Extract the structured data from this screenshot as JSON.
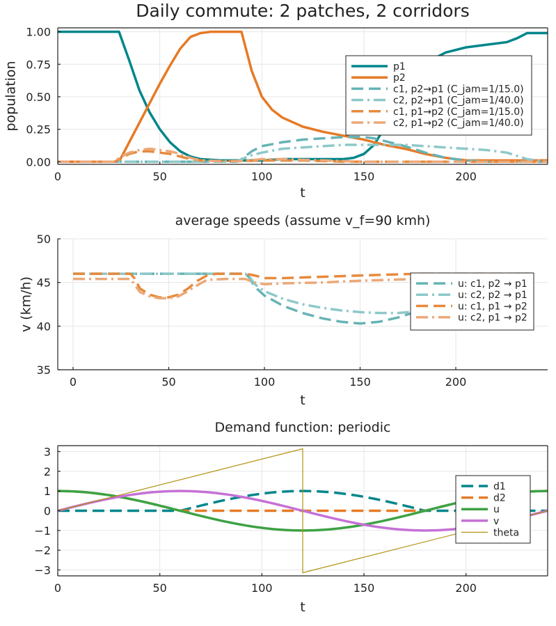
{
  "chart_data": [
    {
      "type": "line",
      "title": "Daily commute: 2 patches, 2 corridors",
      "xlabel": "t",
      "ylabel": "population",
      "xlim": [
        0,
        240
      ],
      "ylim": [
        -0.02,
        1.03
      ],
      "xticks": [
        0,
        50,
        100,
        150,
        200
      ],
      "xtick_labels": [
        "0",
        "50",
        "100",
        "150",
        "200"
      ],
      "yticks": [
        0,
        0.25,
        0.5,
        0.75,
        1.0
      ],
      "ytick_labels": [
        "0.00",
        "0.25",
        "0.50",
        "0.75",
        "1.00"
      ],
      "grid": true,
      "legend_position": "right",
      "series": [
        {
          "name": "p1",
          "color": "#00868b",
          "style": "solid",
          "width": 3.5,
          "x": [
            0,
            30,
            35,
            40,
            45,
            50,
            55,
            60,
            65,
            70,
            80,
            90,
            100,
            110,
            120,
            130,
            140,
            145,
            150,
            155,
            160,
            165,
            170,
            180,
            190,
            200,
            210,
            220,
            225,
            230,
            235,
            240
          ],
          "y": [
            1,
            1,
            0.78,
            0.55,
            0.38,
            0.25,
            0.15,
            0.08,
            0.04,
            0.02,
            0.01,
            0.01,
            0.01,
            0.02,
            0.02,
            0.02,
            0.02,
            0.03,
            0.06,
            0.13,
            0.26,
            0.42,
            0.58,
            0.76,
            0.84,
            0.88,
            0.9,
            0.92,
            0.95,
            0.99,
            0.99,
            0.99
          ]
        },
        {
          "name": "p2",
          "color": "#e67a26",
          "style": "solid",
          "width": 3.5,
          "x": [
            0,
            30,
            35,
            40,
            45,
            50,
            55,
            60,
            65,
            70,
            75,
            80,
            85,
            90,
            95,
            100,
            105,
            110,
            120,
            130,
            140,
            150,
            160,
            170,
            180,
            190,
            200,
            210,
            220,
            240
          ],
          "y": [
            0,
            0,
            0.15,
            0.3,
            0.45,
            0.6,
            0.74,
            0.87,
            0.96,
            0.99,
            1,
            1,
            1,
            1,
            0.7,
            0.5,
            0.4,
            0.34,
            0.27,
            0.23,
            0.2,
            0.17,
            0.13,
            0.1,
            0.06,
            0.03,
            0.01,
            0.01,
            0.01,
            0.01
          ]
        },
        {
          "name": "c1, p2→p1 (C_jam=1/15.0)",
          "color": "#66b3b5",
          "style": "dash",
          "width": 3.5,
          "x": [
            0,
            88,
            90,
            95,
            100,
            110,
            120,
            130,
            140,
            150,
            155,
            160,
            170,
            180,
            190,
            200,
            210,
            230,
            240
          ],
          "y": [
            0,
            0,
            0.02,
            0.08,
            0.12,
            0.15,
            0.17,
            0.18,
            0.19,
            0.19,
            0.18,
            0.16,
            0.12,
            0.07,
            0.03,
            0.01,
            0,
            0,
            0
          ]
        },
        {
          "name": "c2, p2→p1 (C_jam=1/40.0)",
          "color": "#8ec8c9",
          "style": "dashdot",
          "width": 3.5,
          "x": [
            0,
            88,
            90,
            95,
            100,
            110,
            120,
            130,
            140,
            150,
            160,
            170,
            180,
            190,
            200,
            210,
            220,
            230,
            240
          ],
          "y": [
            0,
            0,
            0.02,
            0.05,
            0.07,
            0.1,
            0.11,
            0.12,
            0.13,
            0.13,
            0.13,
            0.13,
            0.12,
            0.11,
            0.1,
            0.09,
            0.07,
            0.02,
            0
          ]
        },
        {
          "name": "c1, p1→p2 (C_jam=1/15.0)",
          "color": "#e68a3c",
          "style": "dash",
          "width": 3.5,
          "x": [
            0,
            28,
            30,
            35,
            40,
            45,
            50,
            55,
            60,
            65,
            70,
            80,
            90,
            100,
            110,
            120,
            130,
            140,
            150,
            160,
            180,
            200,
            240
          ],
          "y": [
            0,
            0,
            0.02,
            0.06,
            0.08,
            0.08,
            0.07,
            0.06,
            0.04,
            0.02,
            0.01,
            0.005,
            0.005,
            0.01,
            0.01,
            0.01,
            0.005,
            0,
            0,
            0,
            0,
            0,
            0
          ]
        },
        {
          "name": "c2, p1→p2 (C_jam=1/40.0)",
          "color": "#eba878",
          "style": "dashdot",
          "width": 3.5,
          "x": [
            0,
            28,
            30,
            35,
            40,
            45,
            50,
            55,
            60,
            65,
            70,
            80,
            90,
            100,
            110,
            120,
            130,
            150,
            180,
            200,
            240
          ],
          "y": [
            0,
            0,
            0.03,
            0.07,
            0.09,
            0.1,
            0.09,
            0.08,
            0.06,
            0.03,
            0.01,
            0.005,
            0.005,
            0.02,
            0.02,
            0.015,
            0.01,
            0,
            0,
            0,
            0
          ]
        }
      ]
    },
    {
      "type": "line",
      "title": "average speeds (assume v_f=90 kmh)",
      "xlabel": "t",
      "ylabel": "v (km/h)",
      "xlim": [
        -8,
        248
      ],
      "ylim": [
        35,
        50
      ],
      "xticks": [
        0,
        50,
        100,
        150,
        200
      ],
      "xtick_labels": [
        "0",
        "50",
        "100",
        "150",
        "200"
      ],
      "yticks": [
        35,
        40,
        45,
        50
      ],
      "ytick_labels": [
        "35",
        "40",
        "45",
        "50"
      ],
      "grid": true,
      "legend_position": "right",
      "series": [
        {
          "name": "u: c1, p2 → p1",
          "color": "#66b3b5",
          "style": "dash",
          "width": 3.5,
          "x": [
            0,
            90,
            92,
            95,
            100,
            110,
            120,
            130,
            140,
            150,
            160,
            170,
            180,
            190,
            200,
            210,
            220,
            230,
            240
          ],
          "y": [
            46,
            46,
            45.6,
            44.5,
            43.5,
            42.3,
            41.5,
            40.9,
            40.5,
            40.3,
            40.5,
            41,
            41.7,
            43,
            44.5,
            45.5,
            45.9,
            46,
            46
          ]
        },
        {
          "name": "u: c2, p2 → p1",
          "color": "#8ec8c9",
          "style": "dashdot",
          "width": 3.5,
          "x": [
            0,
            90,
            92,
            95,
            100,
            110,
            120,
            130,
            140,
            150,
            160,
            170,
            180,
            190,
            200,
            210,
            220,
            230,
            240
          ],
          "y": [
            46,
            46,
            45.7,
            44.8,
            44,
            43.1,
            42.5,
            42.1,
            41.8,
            41.6,
            41.5,
            41.5,
            41.7,
            42.2,
            43.2,
            44.5,
            45.4,
            45.9,
            46
          ]
        },
        {
          "name": "u: c1, p1 → p2",
          "color": "#e68a3c",
          "style": "dash",
          "width": 3.5,
          "x": [
            0,
            30,
            32,
            35,
            40,
            45,
            50,
            55,
            60,
            65,
            70,
            75,
            80,
            90,
            95,
            100,
            110,
            150,
            180,
            240
          ],
          "y": [
            46,
            46,
            45.5,
            44.3,
            43.6,
            43.3,
            43.3,
            43.6,
            44.3,
            45.2,
            45.8,
            46,
            46,
            46,
            45.8,
            45.5,
            45.5,
            45.8,
            46,
            46
          ]
        },
        {
          "name": "u: c2, p1 → p2",
          "color": "#eba878",
          "style": "dashdot",
          "width": 3.5,
          "x": [
            0,
            30,
            32,
            35,
            40,
            45,
            50,
            55,
            60,
            65,
            70,
            80,
            90,
            95,
            100,
            110,
            130,
            150,
            180,
            240
          ],
          "y": [
            45.4,
            45.4,
            44.8,
            43.9,
            43.4,
            43.2,
            43.2,
            43.4,
            44,
            44.7,
            45.3,
            45.4,
            45.4,
            45,
            44.8,
            44.9,
            45,
            45.2,
            45.4,
            45.4
          ]
        }
      ]
    },
    {
      "type": "line",
      "title": "Demand function: periodic",
      "xlabel": "t",
      "ylabel": "",
      "xlim": [
        0,
        240
      ],
      "ylim": [
        -3.3,
        3.3
      ],
      "xticks": [
        0,
        50,
        100,
        150,
        200
      ],
      "xtick_labels": [
        "0",
        "50",
        "100",
        "150",
        "200"
      ],
      "yticks": [
        -3,
        -2,
        -1,
        0,
        1,
        2,
        3
      ],
      "ytick_labels": [
        "−3",
        "−2",
        "−1",
        "0",
        "1",
        "2",
        "3"
      ],
      "grid": true,
      "legend_position": "right",
      "series": [
        {
          "name": "d1",
          "color": "#00868b",
          "style": "dash",
          "width": 3.5,
          "formula": "max(0, -cos(2*pi*t/240))"
        },
        {
          "name": "d2",
          "color": "#e67a26",
          "style": "dash",
          "width": 3.5,
          "formula": "max(0, cos(2*pi*t/240))"
        },
        {
          "name": "u",
          "color": "#3da244",
          "style": "solid",
          "width": 3.5,
          "formula": "cos(2*pi*t/240)"
        },
        {
          "name": "v",
          "color": "#c571d6",
          "style": "solid",
          "width": 3.5,
          "formula": "sin(2*pi*t/240)"
        },
        {
          "name": "theta",
          "color": "#b2920f",
          "style": "solid",
          "width": 1.2,
          "formula": "sawtooth -pi..pi",
          "x": [
            0,
            120,
            120,
            240
          ],
          "y": [
            0,
            3.1416,
            -3.1416,
            0
          ]
        }
      ]
    }
  ]
}
